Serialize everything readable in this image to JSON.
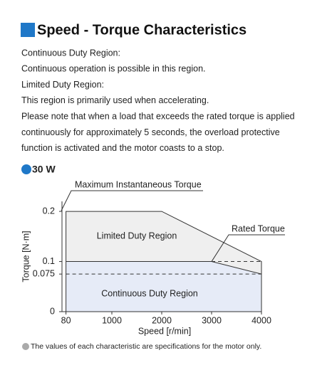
{
  "title": "Speed - Torque Characteristics",
  "lines": [
    "Continuous Duty Region:",
    "Continuous operation is possible in this region.",
    "Limited Duty Region:",
    "This region is primarily used when accelerating.",
    "Please note that when a load that exceeds the rated torque is applied",
    "continuously for approximately 5 seconds, the overload protective",
    "function is activated and the motor coasts to a stop."
  ],
  "model": "30 W",
  "chart_data": {
    "type": "line",
    "xlabel": "Speed [r/min]",
    "ylabel": "Torque [N·m]",
    "xlim": [
      0,
      4000
    ],
    "xticks": [
      80,
      1000,
      2000,
      3000,
      4000
    ],
    "ylim": [
      0,
      0.22
    ],
    "yticks": [
      0,
      0.075,
      0.1,
      0.2
    ],
    "series": [
      {
        "name": "Limited Duty Region",
        "color": "#efefef",
        "x": [
          80,
          2000,
          4000
        ],
        "values": [
          0.2,
          0.2,
          0.1
        ]
      },
      {
        "name": "Continuous Duty Region",
        "color": "#e6ebf7",
        "x": [
          80,
          3000,
          4000
        ],
        "values": [
          0.1,
          0.1,
          0.075
        ]
      }
    ],
    "annotations": [
      "Maximum Instantaneous Torque",
      "Rated Torque"
    ]
  },
  "footnote": "The values of each characteristic are specifications for the motor only."
}
